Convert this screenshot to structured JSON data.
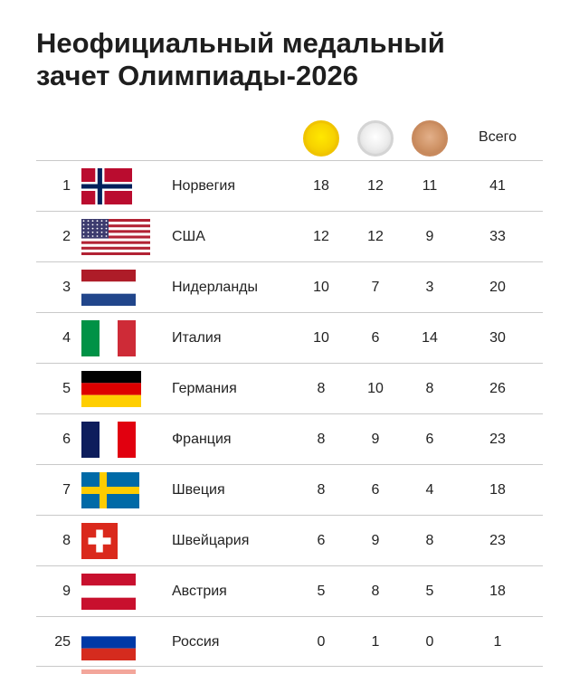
{
  "title": {
    "line1": "Неофициальный медальный",
    "line2": "зачет Олимпиады-2026"
  },
  "header": {
    "medals": [
      "gold",
      "silver",
      "bronze"
    ],
    "total_label": "Всего"
  },
  "colors": {
    "gold": "#f7d300",
    "silver": "#e6e6e6",
    "bronze": "#cf9366",
    "divider": "#c9c9c9"
  },
  "rows": [
    {
      "rank": "1",
      "flag": "norway-flag",
      "country": "Норвегия",
      "gold": "18",
      "silver": "12",
      "bronze": "11",
      "total": "41"
    },
    {
      "rank": "2",
      "flag": "usa-flag",
      "country": "США",
      "gold": "12",
      "silver": "12",
      "bronze": "9",
      "total": "33"
    },
    {
      "rank": "3",
      "flag": "netherlands-flag",
      "country": "Нидерланды",
      "gold": "10",
      "silver": "7",
      "bronze": "3",
      "total": "20"
    },
    {
      "rank": "4",
      "flag": "italy-flag",
      "country": "Италия",
      "gold": "10",
      "silver": "6",
      "bronze": "14",
      "total": "30"
    },
    {
      "rank": "5",
      "flag": "germany-flag",
      "country": "Германия",
      "gold": "8",
      "silver": "10",
      "bronze": "8",
      "total": "26"
    },
    {
      "rank": "6",
      "flag": "france-flag",
      "country": "Франция",
      "gold": "8",
      "silver": "9",
      "bronze": "6",
      "total": "23"
    },
    {
      "rank": "7",
      "flag": "sweden-flag",
      "country": "Швеция",
      "gold": "8",
      "silver": "6",
      "bronze": "4",
      "total": "18"
    },
    {
      "rank": "8",
      "flag": "switzerland-flag",
      "country": "Швейцария",
      "gold": "6",
      "silver": "9",
      "bronze": "8",
      "total": "23"
    },
    {
      "rank": "9",
      "flag": "austria-flag",
      "country": "Австрия",
      "gold": "5",
      "silver": "8",
      "bronze": "5",
      "total": "18"
    },
    {
      "rank": "25",
      "flag": "russia-flag",
      "country": "Россия",
      "gold": "0",
      "silver": "1",
      "bronze": "0",
      "total": "1"
    }
  ]
}
